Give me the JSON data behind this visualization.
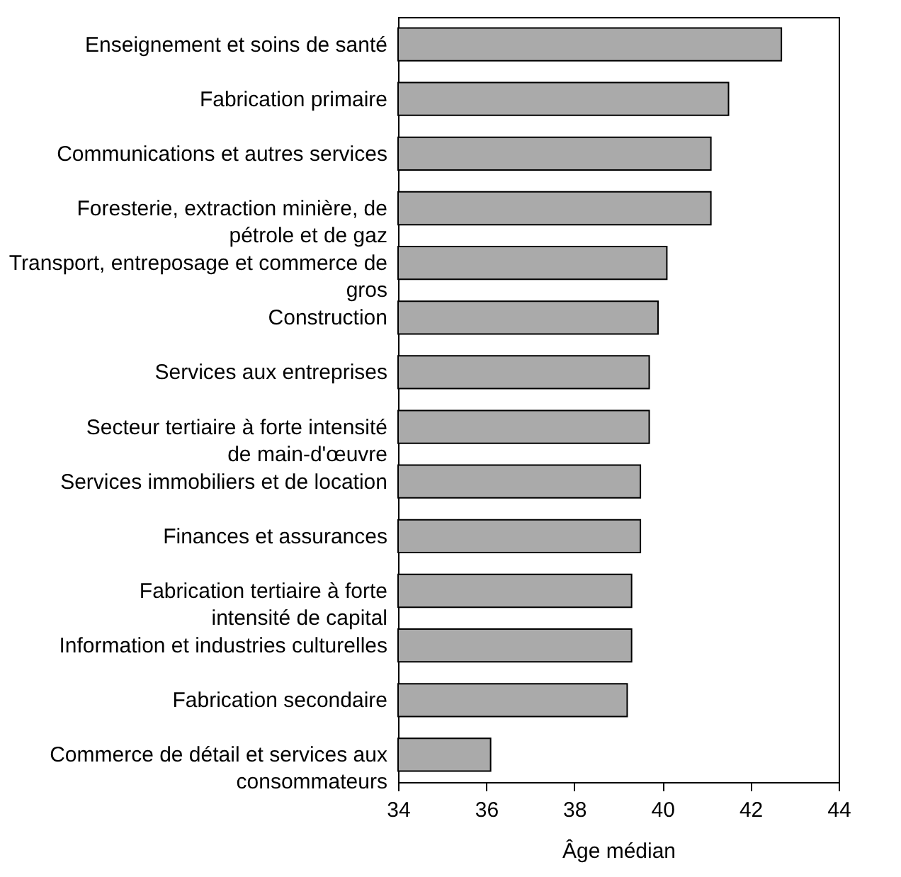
{
  "chart_data": {
    "type": "bar",
    "orientation": "horizontal",
    "xlabel": "Âge médian",
    "categories": [
      "Enseignement et soins de santé",
      "Fabrication primaire",
      "Communications et autres services",
      "Foresterie, extraction minière, de pétrole et de gaz",
      "Transport, entreposage et commerce de gros",
      "Construction",
      "Services aux entreprises",
      "Secteur tertiaire à forte intensité de main-d'œuvre",
      "Services immobiliers et de location",
      "Finances et assurances",
      "Fabrication tertiaire à forte intensité de capital",
      "Information et industries culturelles",
      "Fabrication secondaire",
      "Commerce de détail et services aux consommateurs"
    ],
    "values": [
      42.7,
      41.5,
      41.1,
      41.1,
      40.1,
      39.9,
      39.7,
      39.7,
      39.5,
      39.5,
      39.3,
      39.3,
      39.2,
      36.1
    ],
    "color": "#aaaaaa",
    "xlim": [
      34,
      44
    ],
    "xticks": [
      34,
      36,
      38,
      40,
      42,
      44
    ],
    "grid": false
  }
}
